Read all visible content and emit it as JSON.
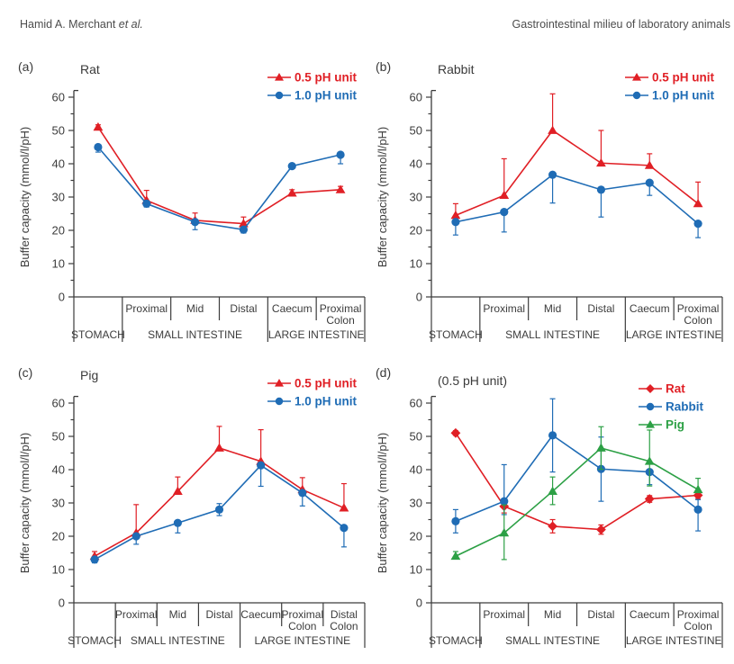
{
  "header": {
    "left_author": "Hamid A. Merchant ",
    "left_etal": "et al.",
    "right_title": "Gastrointestinal milieu of laboratory animals"
  },
  "ui_colors": {
    "red": "#e01f25",
    "blue": "#1f6cb5",
    "green": "#2ca045",
    "axis": "#3c3c3c",
    "header_text": "#4d4d4d"
  },
  "chart_data": [
    {
      "panel_label": "(a)",
      "title": "Rat",
      "type": "line",
      "ylabel": "Buffer capacity (mmol/l/pH)",
      "ylim": [
        0,
        62
      ],
      "yticks": [
        0,
        10,
        20,
        30,
        40,
        50,
        60
      ],
      "yminor_step": 5,
      "grid": false,
      "legend_position": "top-right",
      "categories": [
        "Stomach",
        "Proximal",
        "Mid",
        "Distal",
        "Caecum",
        "Proximal Colon"
      ],
      "category_row_labels": [
        "",
        "Proximal",
        "Mid",
        "Distal",
        "Caecum",
        "Proximal\nColon"
      ],
      "groups": [
        {
          "label": "STOMACH",
          "start": 0,
          "end": 1
        },
        {
          "label": "SMALL INTESTINE",
          "start": 1,
          "end": 4
        },
        {
          "label": "LARGE INTESTINE",
          "start": 4,
          "end": 6
        }
      ],
      "series": [
        {
          "name": "0.5 pH unit",
          "color": "#e01f25",
          "marker": "triangle",
          "values": [
            51,
            29,
            23,
            22,
            31.2,
            32.2
          ],
          "err_up": [
            0.7,
            3,
            2.2,
            2,
            1,
            1
          ],
          "err_down": [
            0.7,
            0.5,
            0.5,
            0.5,
            0.5,
            0.5
          ]
        },
        {
          "name": "1.0 pH unit",
          "color": "#1f6cb5",
          "marker": "circle",
          "values": [
            45,
            28,
            22.5,
            20.2,
            39.3,
            42.7
          ],
          "err_up": [
            0.5,
            0.5,
            0.5,
            0.5,
            0.5,
            0.5
          ],
          "err_down": [
            1.5,
            1,
            2.3,
            1,
            0.5,
            2.7
          ]
        }
      ]
    },
    {
      "panel_label": "(b)",
      "title": "Rabbit",
      "type": "line",
      "ylabel": "Buffer capacity (mmol/l/pH)",
      "ylim": [
        0,
        62
      ],
      "yticks": [
        0,
        10,
        20,
        30,
        40,
        50,
        60
      ],
      "yminor_step": 5,
      "grid": false,
      "legend_position": "top-right",
      "categories": [
        "Stomach",
        "Proximal",
        "Mid",
        "Distal",
        "Caecum",
        "Proximal Colon"
      ],
      "category_row_labels": [
        "",
        "Proximal",
        "Mid",
        "Distal",
        "Caecum",
        "Proximal\nColon"
      ],
      "groups": [
        {
          "label": "STOMACH",
          "start": 0,
          "end": 1
        },
        {
          "label": "SMALL INTESTINE",
          "start": 1,
          "end": 4
        },
        {
          "label": "LARGE INTESTINE",
          "start": 4,
          "end": 6
        }
      ],
      "series": [
        {
          "name": "0.5 pH unit",
          "color": "#e01f25",
          "marker": "triangle",
          "values": [
            24.5,
            30.5,
            50,
            40.2,
            39.5,
            28
          ],
          "err_up": [
            3.5,
            11,
            11,
            9.8,
            3.5,
            6.5
          ],
          "err_down": [
            0.5,
            0.5,
            0.5,
            0.5,
            0.5,
            0.5
          ]
        },
        {
          "name": "1.0 pH unit",
          "color": "#1f6cb5",
          "marker": "circle",
          "values": [
            22.5,
            25.5,
            36.7,
            32.2,
            34.3,
            22
          ],
          "err_up": [
            0.5,
            0.5,
            0.5,
            0.5,
            0.6,
            0.5
          ],
          "err_down": [
            3.9,
            6,
            8.5,
            8.2,
            3.8,
            4.2
          ]
        }
      ]
    },
    {
      "panel_label": "(c)",
      "title": "Pig",
      "type": "line",
      "ylabel": "Buffer capacity (mmol/l/pH)",
      "ylim": [
        0,
        62
      ],
      "yticks": [
        0,
        10,
        20,
        30,
        40,
        50,
        60
      ],
      "yminor_step": 5,
      "grid": false,
      "legend_position": "top-right",
      "categories": [
        "Stomach",
        "Proximal",
        "Mid",
        "Distal",
        "Caecum",
        "Proximal Colon",
        "Distal Colon"
      ],
      "category_row_labels": [
        "",
        "Proximal",
        "Mid",
        "Distal",
        "Caecum",
        "Proximal\nColon",
        "Distal\nColon"
      ],
      "groups": [
        {
          "label": "STOMACH",
          "start": 0,
          "end": 1
        },
        {
          "label": "SMALL INTESTINE",
          "start": 1,
          "end": 4
        },
        {
          "label": "LARGE INTESTINE",
          "start": 4,
          "end": 7
        }
      ],
      "series": [
        {
          "name": "0.5 pH unit",
          "color": "#e01f25",
          "marker": "triangle",
          "values": [
            14,
            21,
            33.5,
            46.5,
            42.5,
            34,
            28.5
          ],
          "err_up": [
            1.4,
            8.5,
            4.3,
            6.5,
            9.5,
            3.6,
            7.3
          ],
          "err_down": [
            0.5,
            0.5,
            0.5,
            0.5,
            0.5,
            0.5,
            0.5
          ]
        },
        {
          "name": "1.0 pH unit",
          "color": "#1f6cb5",
          "marker": "circle",
          "values": [
            13,
            20,
            24,
            28,
            41.3,
            33,
            22.5
          ],
          "err_up": [
            0.5,
            0.5,
            0.5,
            1.8,
            0.5,
            0.5,
            0.5
          ],
          "err_down": [
            1,
            2.4,
            3,
            1.8,
            6.3,
            3.9,
            5.7
          ]
        }
      ]
    },
    {
      "panel_label": "(d)",
      "title": "(0.5 pH unit)",
      "type": "line",
      "ylabel": "Buffer capacity (mmol/l/pH)",
      "ylim": [
        0,
        62
      ],
      "yticks": [
        0,
        10,
        20,
        30,
        40,
        50,
        60
      ],
      "yminor_step": 5,
      "grid": false,
      "legend_position": "top-right",
      "categories": [
        "Stomach",
        "Proximal",
        "Mid",
        "Distal",
        "Caecum",
        "Proximal Colon"
      ],
      "category_row_labels": [
        "",
        "Proximal",
        "Mid",
        "Distal",
        "Caecum",
        "Proximal\nColon"
      ],
      "groups": [
        {
          "label": "STOMACH",
          "start": 0,
          "end": 1
        },
        {
          "label": "SMALL INTESTINE",
          "start": 1,
          "end": 4
        },
        {
          "label": "LARGE INTESTINE",
          "start": 4,
          "end": 6
        }
      ],
      "series": [
        {
          "name": "Rat",
          "color": "#e01f25",
          "marker": "diamond",
          "values": [
            51,
            29,
            23,
            22,
            31.2,
            32.3
          ],
          "err_up": [
            0.7,
            2,
            2,
            1.4,
            1,
            1
          ],
          "err_down": [
            0.7,
            2,
            2,
            1.4,
            1,
            1
          ]
        },
        {
          "name": "Rabbit",
          "color": "#1f6cb5",
          "marker": "circle",
          "values": [
            24.5,
            30.5,
            50.3,
            40.2,
            39.3,
            28
          ],
          "err_up": [
            3.5,
            11,
            11,
            9.6,
            0.7,
            3
          ],
          "err_down": [
            3.5,
            4,
            11,
            9.7,
            3.8,
            6.4
          ]
        },
        {
          "name": "Pig",
          "color": "#2ca045",
          "marker": "triangle",
          "values": [
            14,
            21,
            33.5,
            46.5,
            42.5,
            34
          ],
          "err_up": [
            1.4,
            8.4,
            4.3,
            6.4,
            9.4,
            3.4
          ],
          "err_down": [
            0.7,
            8,
            4,
            6.4,
            7.4,
            0.7
          ]
        }
      ]
    }
  ]
}
